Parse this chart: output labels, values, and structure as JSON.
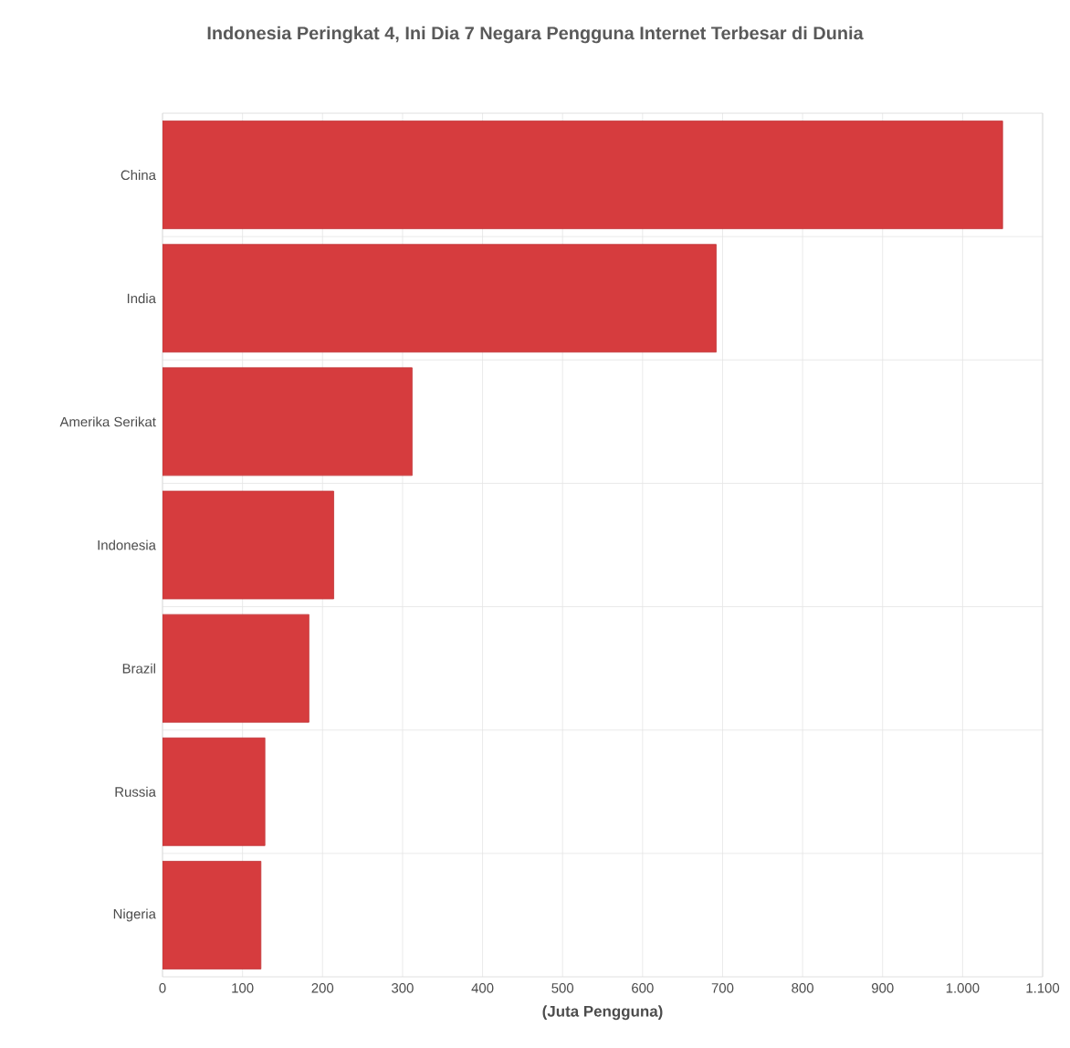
{
  "chart_data": {
    "type": "bar",
    "orientation": "horizontal",
    "title": "Indonesia Peringkat 4, Ini Dia 7 Negara Pengguna Internet Terbesar di Dunia",
    "xlabel": "(Juta Pengguna)",
    "categories": [
      "China",
      "India",
      "Amerika Serikat",
      "Indonesia",
      "Brazil",
      "Russia",
      "Nigeria"
    ],
    "values": [
      1050,
      692,
      312,
      214,
      183,
      128,
      123
    ],
    "color": "#d63c3e",
    "xlim": [
      0,
      1100
    ],
    "xticks": [
      0,
      100,
      200,
      300,
      400,
      500,
      600,
      700,
      800,
      900,
      {
        "value": 1000,
        "label": "1.000"
      },
      {
        "value": 1100,
        "label": "1.100"
      }
    ],
    "grid": true
  }
}
